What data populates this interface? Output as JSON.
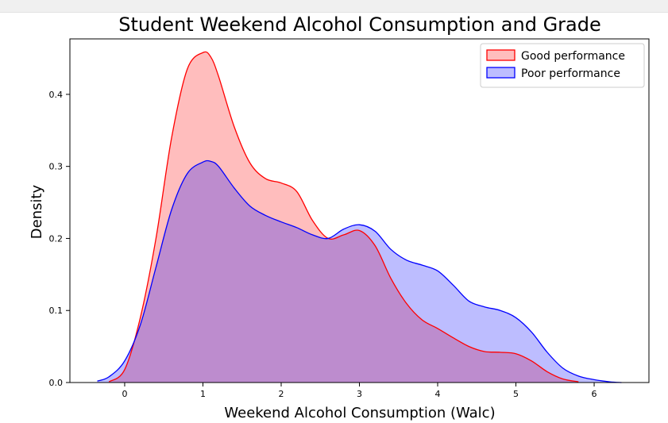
{
  "chart_data": {
    "type": "area",
    "title": "Student Weekend Alcohol Consumption and Grade",
    "xlabel": "Weekend Alcohol Consumption (Walc)",
    "ylabel": "Density",
    "xlim": [
      -0.7,
      6.7
    ],
    "ylim": [
      0,
      0.477
    ],
    "xticks": [
      "0",
      "1",
      "2",
      "3",
      "4",
      "5",
      "6"
    ],
    "yticks": [
      "0.0",
      "0.1",
      "0.2",
      "0.3",
      "0.4"
    ],
    "legend": "top-right",
    "grid": false,
    "series": [
      {
        "name": "Good performance",
        "color": "#ff0000",
        "fill": "#ff0000",
        "x": [
          -0.2,
          0.0,
          0.2,
          0.4,
          0.6,
          0.8,
          1.0,
          1.1,
          1.2,
          1.4,
          1.6,
          1.8,
          2.0,
          2.2,
          2.4,
          2.6,
          2.8,
          3.0,
          3.2,
          3.4,
          3.6,
          3.8,
          4.0,
          4.2,
          4.4,
          4.6,
          4.8,
          5.0,
          5.2,
          5.4,
          5.6,
          5.8
        ],
        "y": [
          0.001,
          0.018,
          0.09,
          0.2,
          0.34,
          0.435,
          0.458,
          0.452,
          0.425,
          0.355,
          0.305,
          0.283,
          0.277,
          0.265,
          0.225,
          0.2,
          0.205,
          0.211,
          0.19,
          0.145,
          0.11,
          0.087,
          0.075,
          0.062,
          0.05,
          0.043,
          0.042,
          0.04,
          0.03,
          0.015,
          0.005,
          0.001
        ]
      },
      {
        "name": "Poor performance",
        "color": "#0000ff",
        "fill": "#0000ff",
        "x": [
          -0.35,
          -0.2,
          0.0,
          0.2,
          0.4,
          0.6,
          0.8,
          1.0,
          1.1,
          1.2,
          1.4,
          1.6,
          1.8,
          2.0,
          2.2,
          2.4,
          2.6,
          2.8,
          3.0,
          3.2,
          3.4,
          3.6,
          3.8,
          4.0,
          4.2,
          4.4,
          4.6,
          4.8,
          5.0,
          5.2,
          5.4,
          5.6,
          5.8,
          6.0,
          6.2,
          6.35
        ],
        "y": [
          0.002,
          0.008,
          0.03,
          0.08,
          0.16,
          0.24,
          0.29,
          0.306,
          0.307,
          0.3,
          0.27,
          0.245,
          0.232,
          0.223,
          0.215,
          0.205,
          0.2,
          0.213,
          0.219,
          0.21,
          0.185,
          0.17,
          0.163,
          0.155,
          0.135,
          0.113,
          0.105,
          0.1,
          0.09,
          0.07,
          0.042,
          0.02,
          0.009,
          0.004,
          0.001,
          0.0
        ]
      }
    ]
  }
}
